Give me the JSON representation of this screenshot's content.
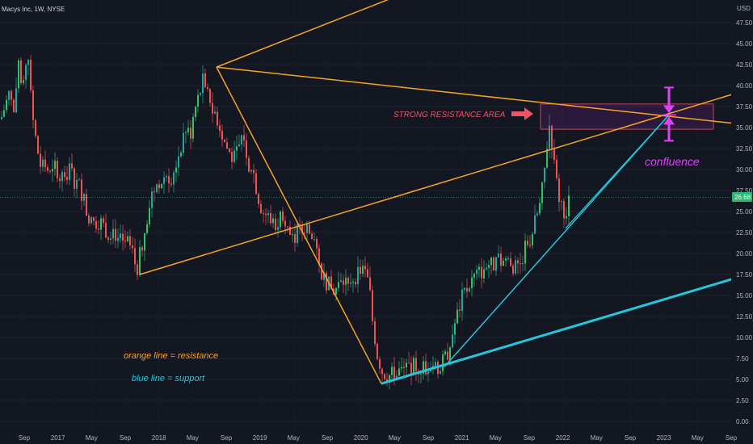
{
  "header": {
    "symbol": "Macys Inc, 1W, NYSE"
  },
  "price_axis": {
    "currency": "USD",
    "last_price_label": "26.68"
  },
  "colors": {
    "background": "#131722",
    "up_candle": "#26a69a",
    "up_candle_bright": "#2ec26a",
    "down_candle": "#ef5350",
    "resistance_line": "#f7a229",
    "support_line": "#26c6da",
    "resistance_label": "#ef5366",
    "confluence": "#e040fb",
    "price_tag": "#2bb673"
  },
  "annotations": {
    "strong_resistance": "STRONG RESISTANCE AREA",
    "confluence": "confluence",
    "legend_orange": "orange line = resistance",
    "legend_blue": "blue line = support"
  },
  "chart_data": {
    "type": "candlestick",
    "title": "Macys Inc, 1W, NYSE",
    "timeframe": "1W",
    "exchange": "NYSE",
    "ylim": [
      0,
      49
    ],
    "y_ticks": [
      "0.00",
      "2.50",
      "5.00",
      "7.50",
      "10.00",
      "12.50",
      "15.00",
      "17.50",
      "20.00",
      "22.50",
      "25.00",
      "27.50",
      "30.00",
      "32.50",
      "35.00",
      "37.50",
      "40.00",
      "42.50",
      "45.00",
      "47.50"
    ],
    "x_tick_labels": [
      "Sep",
      "2017",
      "May",
      "Sep",
      "2018",
      "May",
      "Sep",
      "2019",
      "May",
      "Sep",
      "2020",
      "May",
      "Sep",
      "2021",
      "May",
      "Sep",
      "2022",
      "May",
      "Sep",
      "2023",
      "May",
      "Sep"
    ],
    "last_price": 26.68,
    "price_path": [
      [
        0,
        36
      ],
      [
        10,
        39
      ],
      [
        17,
        36.5
      ],
      [
        22,
        42
      ],
      [
        27,
        38.5
      ],
      [
        33,
        45
      ],
      [
        38,
        37
      ],
      [
        44,
        33
      ],
      [
        50,
        30
      ],
      [
        56,
        30.5
      ],
      [
        62,
        29
      ],
      [
        68,
        30.5
      ],
      [
        74,
        29
      ],
      [
        80,
        29.5
      ],
      [
        86,
        30
      ],
      [
        92,
        28.5
      ],
      [
        98,
        28
      ],
      [
        104,
        26
      ],
      [
        108,
        24
      ],
      [
        114,
        23.5
      ],
      [
        120,
        24
      ],
      [
        126,
        23.5
      ],
      [
        132,
        22.5
      ],
      [
        138,
        23
      ],
      [
        144,
        22
      ],
      [
        150,
        21
      ],
      [
        156,
        21.5
      ],
      [
        162,
        20.5
      ],
      [
        168,
        18
      ],
      [
        174,
        20.5
      ],
      [
        180,
        24
      ],
      [
        186,
        27
      ],
      [
        192,
        28
      ],
      [
        198,
        28.5
      ],
      [
        204,
        29.5
      ],
      [
        210,
        29
      ],
      [
        216,
        30.5
      ],
      [
        222,
        32.5
      ],
      [
        228,
        35
      ],
      [
        234,
        34
      ],
      [
        240,
        37
      ],
      [
        246,
        39
      ],
      [
        250,
        40.5
      ],
      [
        254,
        38.5
      ],
      [
        258,
        39
      ],
      [
        262,
        37
      ],
      [
        266,
        36.5
      ],
      [
        270,
        35.5
      ],
      [
        276,
        33.5
      ],
      [
        282,
        32
      ],
      [
        288,
        31
      ],
      [
        294,
        32.5
      ],
      [
        300,
        34.5
      ],
      [
        306,
        31
      ],
      [
        312,
        30
      ],
      [
        318,
        27
      ],
      [
        324,
        25
      ],
      [
        330,
        24.5
      ],
      [
        336,
        24
      ],
      [
        342,
        23.5
      ],
      [
        348,
        25
      ],
      [
        354,
        24
      ],
      [
        360,
        21.5
      ],
      [
        366,
        22.5
      ],
      [
        372,
        22.5
      ],
      [
        378,
        23.5
      ],
      [
        384,
        22
      ],
      [
        390,
        20
      ],
      [
        394,
        18.5
      ],
      [
        398,
        17.5
      ],
      [
        404,
        16.5
      ],
      [
        410,
        15.5
      ],
      [
        416,
        16
      ],
      [
        422,
        16.5
      ],
      [
        428,
        17
      ],
      [
        434,
        17
      ],
      [
        440,
        17.5
      ],
      [
        446,
        18
      ],
      [
        452,
        17.5
      ],
      [
        456,
        16
      ],
      [
        460,
        12
      ],
      [
        466,
        8
      ],
      [
        472,
        6
      ],
      [
        478,
        5.5
      ],
      [
        484,
        5.5
      ],
      [
        490,
        6
      ],
      [
        496,
        6
      ],
      [
        502,
        6.5
      ],
      [
        508,
        6.5
      ],
      [
        514,
        6.5
      ],
      [
        520,
        6.5
      ],
      [
        526,
        6.5
      ],
      [
        532,
        7
      ],
      [
        538,
        6.5
      ],
      [
        544,
        6.5
      ],
      [
        550,
        7.5
      ],
      [
        556,
        9
      ],
      [
        560,
        11
      ],
      [
        566,
        13
      ],
      [
        572,
        15
      ],
      [
        578,
        16
      ],
      [
        584,
        17
      ],
      [
        590,
        17.5
      ],
      [
        596,
        18
      ],
      [
        602,
        19
      ],
      [
        608,
        18.5
      ],
      [
        614,
        19
      ],
      [
        620,
        19
      ],
      [
        626,
        19.5
      ],
      [
        632,
        19
      ],
      [
        638,
        18
      ],
      [
        644,
        19
      ],
      [
        650,
        21
      ],
      [
        656,
        22
      ],
      [
        662,
        24
      ],
      [
        668,
        26
      ],
      [
        672,
        29
      ],
      [
        676,
        33
      ],
      [
        680,
        36
      ],
      [
        684,
        31
      ],
      [
        690,
        27
      ],
      [
        696,
        25.5
      ],
      [
        700,
        24.5
      ],
      [
        704,
        26.68
      ]
    ],
    "resistance_lines": [
      {
        "x1": 173,
        "y1": 17.5,
        "x2": 908,
        "y2": 39
      },
      {
        "x1": 268,
        "y1": 42.2,
        "x2": 540,
        "y2": 52.5
      },
      {
        "x1": 268,
        "y1": 42.2,
        "x2": 908,
        "y2": 35.5
      },
      {
        "x1": 268,
        "y1": 42.2,
        "x2": 472,
        "y2": 4.5
      },
      {
        "x1": 472,
        "y1": 4.5,
        "x2": 540,
        "y2": 6.5
      }
    ],
    "support_lines": [
      {
        "x1": 472,
        "y1": 4.5,
        "x2": 908,
        "y2": 17.0,
        "width": 3
      },
      {
        "x1": 550,
        "y1": 6.5,
        "x2": 828,
        "y2": 36.5,
        "width": 1.5
      },
      {
        "x1": 700,
        "y1": 23,
        "x2": 828,
        "y2": 36.5,
        "width": 1.2
      }
    ],
    "resistance_zone": {
      "x1": 669,
      "x2": 883,
      "y_low": 34.8,
      "y_high": 37.8
    },
    "confluence_point": {
      "x": 828,
      "y": 36.5
    }
  }
}
